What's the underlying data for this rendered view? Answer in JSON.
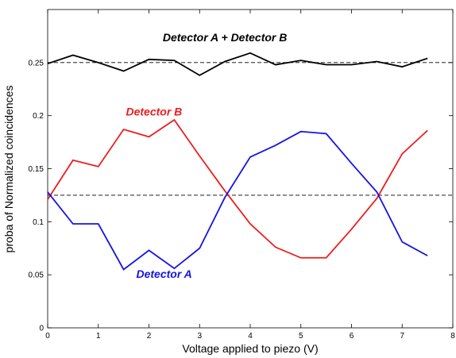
{
  "chart_data": {
    "type": "line",
    "title": "",
    "xlabel": "Voltage applied to piezo (V)",
    "ylabel": "proba of Normalized coincidences",
    "xlim": [
      0,
      8
    ],
    "ylim": [
      0,
      0.3
    ],
    "xticks": [
      0,
      1,
      2,
      3,
      4,
      5,
      6,
      7,
      8
    ],
    "yticks": [
      0,
      0.05,
      0.1,
      0.15,
      0.2,
      0.25
    ],
    "ytick_labels": [
      "0",
      "0.05",
      "0.1",
      "0.15",
      "0.2",
      "0.25"
    ],
    "grid": false,
    "x": [
      0,
      0.5,
      1,
      1.5,
      2,
      2.5,
      3,
      3.5,
      4,
      4.5,
      5,
      5.5,
      6,
      6.5,
      7,
      7.5
    ],
    "series": [
      {
        "name": "Detector A + Detector B",
        "color": "#000000",
        "values": [
          0.249,
          0.257,
          0.25,
          0.242,
          0.253,
          0.252,
          0.238,
          0.251,
          0.259,
          0.248,
          0.252,
          0.248,
          0.248,
          0.251,
          0.246,
          0.254
        ]
      },
      {
        "name": "Detector B",
        "color": "#ee1c1c",
        "values": [
          0.121,
          0.158,
          0.152,
          0.187,
          0.18,
          0.196,
          0.162,
          0.129,
          0.098,
          0.076,
          0.066,
          0.066,
          0.093,
          0.122,
          0.164,
          0.186
        ]
      },
      {
        "name": "Detector A",
        "color": "#1414e6",
        "values": [
          0.128,
          0.098,
          0.098,
          0.055,
          0.073,
          0.056,
          0.075,
          0.123,
          0.161,
          0.172,
          0.185,
          0.183,
          0.155,
          0.128,
          0.081,
          0.068
        ]
      }
    ],
    "reference_lines": [
      {
        "y": 0.25,
        "style": "dashed",
        "color": "#000000"
      },
      {
        "y": 0.125,
        "style": "dashed",
        "color": "#000000"
      }
    ],
    "annotations": [
      {
        "text": "Detector A + Detector B",
        "x": 3.5,
        "y": 0.27,
        "color": "#000000"
      },
      {
        "text": "Detector B",
        "x": 2.1,
        "y": 0.2,
        "color": "#ee1c1c"
      },
      {
        "text": "Detector A",
        "x": 2.3,
        "y": 0.047,
        "color": "#1414e6"
      }
    ]
  }
}
